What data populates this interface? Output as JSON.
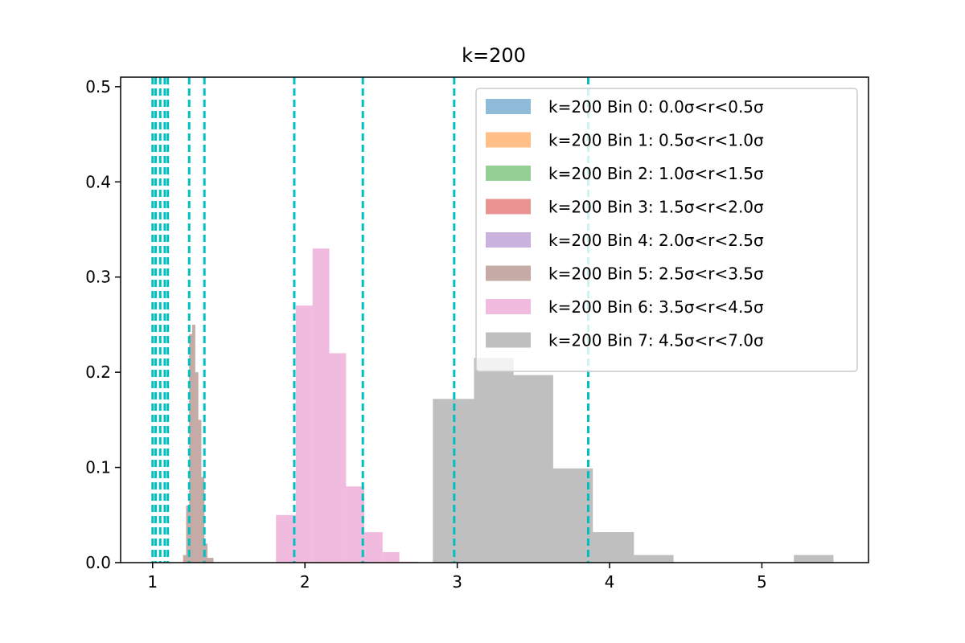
{
  "chart_data": {
    "type": "bar",
    "title": "k=200",
    "xlabel": "",
    "ylabel": "",
    "xlim": [
      0.79,
      5.7
    ],
    "ylim": [
      0,
      0.51
    ],
    "xticks": [
      1,
      2,
      3,
      4,
      5
    ],
    "yticks": [
      0.0,
      0.1,
      0.2,
      0.3,
      0.4,
      0.5
    ],
    "grid": false,
    "legend_position": "top-right",
    "series": [
      {
        "name": "k=200 Bin 0: 0.0σ<r<0.5σ",
        "color": "#1f77b4",
        "bins": []
      },
      {
        "name": "k=200 Bin 1: 0.5σ<r<1.0σ",
        "color": "#ff7f0e",
        "bins": []
      },
      {
        "name": "k=200 Bin 2: 1.0σ<r<1.5σ",
        "color": "#2ca02c",
        "bins": []
      },
      {
        "name": "k=200 Bin 3: 1.5σ<r<2.0σ",
        "color": "#d62728",
        "bins": []
      },
      {
        "name": "k=200 Bin 4: 2.0σ<r<2.5σ",
        "color": "#9467bd",
        "bins": []
      },
      {
        "name": "k=200 Bin 5: 2.5σ<r<3.5σ",
        "color": "#8c564b",
        "bins": [
          [
            1.2,
            1.22,
            0.008
          ],
          [
            1.22,
            1.24,
            0.06
          ],
          [
            1.24,
            1.26,
            0.24
          ],
          [
            1.26,
            1.28,
            0.25
          ],
          [
            1.28,
            1.3,
            0.2
          ],
          [
            1.3,
            1.32,
            0.15
          ],
          [
            1.32,
            1.34,
            0.09
          ],
          [
            1.34,
            1.36,
            0.02
          ],
          [
            1.36,
            1.4,
            0.005
          ]
        ]
      },
      {
        "name": "k=200 Bin 6: 3.5σ<r<4.5σ",
        "color": "#e377c2",
        "bins": [
          [
            1.81,
            1.94,
            0.05
          ],
          [
            1.94,
            2.05,
            0.27
          ],
          [
            2.05,
            2.16,
            0.33
          ],
          [
            2.16,
            2.27,
            0.22
          ],
          [
            2.27,
            2.39,
            0.08
          ],
          [
            2.39,
            2.51,
            0.032
          ],
          [
            2.51,
            2.62,
            0.011
          ],
          [
            2.62,
            2.74,
            0.001
          ]
        ]
      },
      {
        "name": "k=200 Bin 7: 4.5σ<r<7.0σ",
        "color": "#7f7f7f",
        "bins": [
          [
            2.84,
            3.11,
            0.172
          ],
          [
            3.11,
            3.37,
            0.215
          ],
          [
            3.37,
            3.63,
            0.197
          ],
          [
            3.63,
            3.89,
            0.099
          ],
          [
            3.89,
            4.16,
            0.032
          ],
          [
            4.16,
            4.42,
            0.008
          ],
          [
            4.42,
            4.68,
            0.0
          ],
          [
            4.68,
            4.95,
            0.0
          ],
          [
            4.95,
            5.21,
            0.0
          ],
          [
            5.21,
            5.47,
            0.008
          ]
        ]
      }
    ],
    "vlines": {
      "color": "#00bfbf",
      "style": "dashed",
      "x": [
        1.0,
        1.02,
        1.05,
        1.08,
        1.1,
        1.24,
        1.34,
        1.93,
        2.38,
        2.98,
        3.86
      ]
    }
  }
}
